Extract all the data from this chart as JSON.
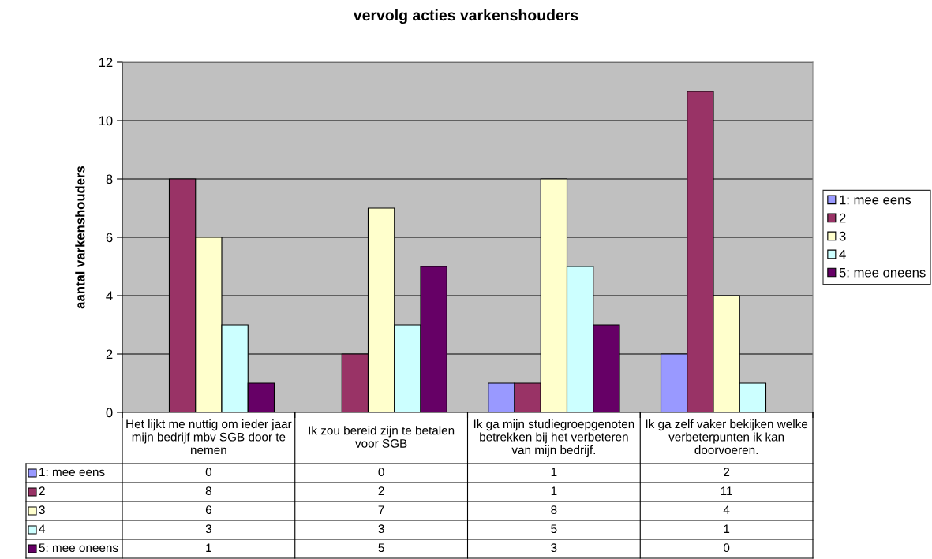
{
  "chart_data": {
    "type": "bar",
    "title": "vervolg acties varkenshouders",
    "ylabel": "aantal varkenshouders",
    "categories": [
      "Het lijkt me nuttig om ieder jaar mijn bedrijf mbv SGB door te nemen",
      "Ik zou bereid zijn te betalen voor SGB",
      "Ik ga mijn studiegroepgenoten betrekken bij het verbeteren van mijn bedrijf.",
      "Ik ga zelf vaker bekijken welke verbeterpunten ik kan doorvoeren."
    ],
    "series": [
      {
        "name": "1: mee eens",
        "color": "#9999ff",
        "values": [
          0,
          0,
          1,
          2
        ]
      },
      {
        "name": "2",
        "color": "#993366",
        "values": [
          8,
          2,
          1,
          11
        ]
      },
      {
        "name": "3",
        "color": "#ffffcc",
        "values": [
          6,
          7,
          8,
          4
        ]
      },
      {
        "name": "4",
        "color": "#ccffff",
        "values": [
          3,
          3,
          5,
          1
        ]
      },
      {
        "name": "5: mee oneens",
        "color": "#660066",
        "values": [
          1,
          5,
          3,
          0
        ]
      }
    ],
    "ylim": [
      0,
      12
    ],
    "yticks": [
      0,
      2,
      4,
      6,
      8,
      10,
      12
    ],
    "grid": "y",
    "legend": "right",
    "data_labels": true
  }
}
